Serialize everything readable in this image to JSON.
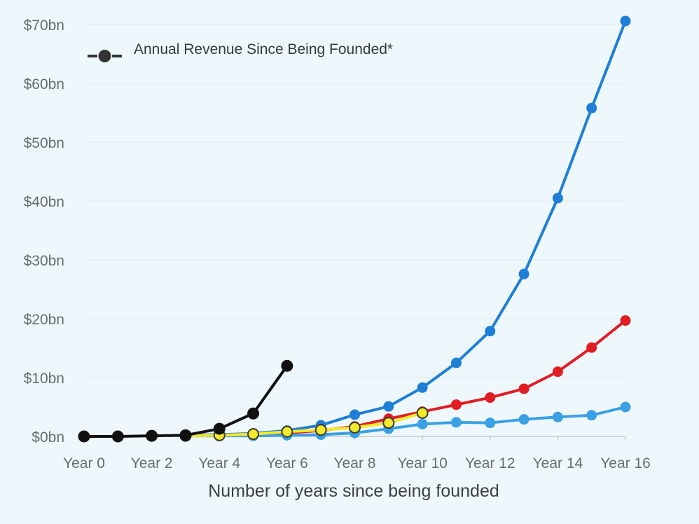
{
  "chart_data": {
    "type": "line",
    "title": "",
    "xlabel": "Number of years since being founded",
    "ylabel": "",
    "x": [
      0,
      1,
      2,
      3,
      4,
      5,
      6,
      7,
      8,
      9,
      10,
      11,
      12,
      13,
      14,
      15,
      16
    ],
    "x_tick_values": [
      0,
      2,
      4,
      6,
      8,
      10,
      12,
      14,
      16
    ],
    "x_tick_labels": [
      "Year 0",
      "Year 2",
      "Year 4",
      "Year 6",
      "Year 8",
      "Year 10",
      "Year 12",
      "Year 14",
      "Year 16"
    ],
    "y_tick_values": [
      0,
      10,
      20,
      30,
      40,
      50,
      60,
      70
    ],
    "y_tick_labels": [
      "$0bn",
      "$10bn",
      "$20bn",
      "$30bn",
      "$40bn",
      "$50bn",
      "$60bn",
      "$70bn"
    ],
    "xlim": [
      0,
      16
    ],
    "ylim": [
      0,
      70
    ],
    "grid": "horizontal",
    "legend": {
      "placement": "top-left",
      "label": "Annual Revenue Since Being Founded*"
    },
    "series": [
      {
        "color": "#1f7fd6",
        "x": [
          3,
          4,
          5,
          6,
          7,
          8,
          9,
          10,
          11,
          12,
          13,
          14,
          15,
          16
        ],
        "values": [
          0.2,
          0.3,
          0.5,
          1.0,
          1.9,
          3.7,
          5.1,
          8.3,
          12.5,
          17.9,
          27.6,
          40.5,
          55.8,
          70.6
        ]
      },
      {
        "color": "#e11d24",
        "x": [
          3,
          4,
          5,
          6,
          7,
          8,
          9,
          10,
          11,
          12,
          13,
          14,
          15,
          16
        ],
        "values": [
          0.1,
          0.2,
          0.4,
          0.6,
          1.0,
          1.7,
          3.0,
          4.2,
          5.4,
          6.6,
          8.1,
          11.0,
          15.1,
          19.7
        ]
      },
      {
        "color": "#3aa0e3",
        "x": [
          3,
          4,
          5,
          6,
          7,
          8,
          9,
          10,
          11,
          12,
          13,
          14,
          15,
          16
        ],
        "values": [
          0.1,
          0.1,
          0.1,
          0.2,
          0.3,
          0.6,
          1.3,
          2.1,
          2.4,
          2.3,
          2.9,
          3.3,
          3.6,
          5.0
        ]
      },
      {
        "color": "#f2ea2a",
        "x": [
          3,
          4,
          5,
          6,
          7,
          8,
          9,
          10
        ],
        "values": [
          0.1,
          0.2,
          0.4,
          0.8,
          1.1,
          1.5,
          2.3,
          4.0
        ]
      },
      {
        "name": "Annual Revenue Since Being Founded*",
        "color": "#111111",
        "x": [
          0,
          1,
          2,
          3,
          4,
          5,
          6
        ],
        "values": [
          0.0,
          0.0,
          0.1,
          0.2,
          1.3,
          3.9,
          12.0
        ]
      }
    ]
  }
}
